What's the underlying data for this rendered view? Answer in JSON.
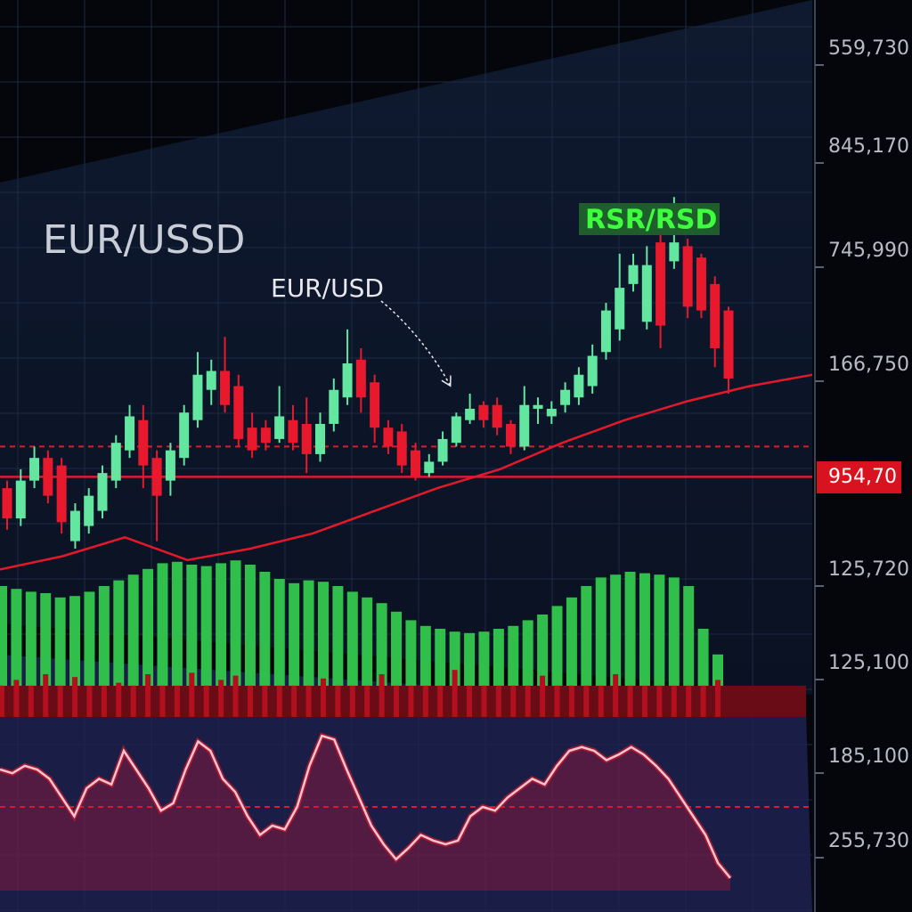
{
  "title": "EUR/USSD",
  "pair_label": "EUR/USD",
  "indicator_label": "RSR/RSD",
  "axis_labels": [
    "559,730",
    "845,170",
    "745,990",
    "166,750",
    "125,720",
    "125,100",
    "185,100",
    "255,730"
  ],
  "current_price_label": "954,70",
  "chart_data": [
    {
      "type": "candlestick",
      "ylim": [
        -10,
        100
      ],
      "up_color": "#62e6a0",
      "down_color": "#e8192c",
      "open": [
        18,
        10,
        20,
        26,
        24,
        4,
        8,
        12,
        20,
        28,
        36,
        26,
        20,
        26,
        36,
        44,
        49,
        45,
        34,
        34,
        31,
        36,
        35,
        27,
        35,
        42,
        52,
        46,
        34,
        33,
        28,
        22,
        25,
        30,
        36,
        40,
        40,
        35,
        29,
        39,
        37,
        40,
        42,
        45,
        54,
        60,
        72,
        62,
        83,
        78,
        82,
        79,
        72,
        65
      ],
      "high": [
        20,
        23,
        29,
        28,
        26,
        14,
        18,
        24,
        32,
        40,
        40,
        28,
        30,
        40,
        54,
        52,
        58,
        48,
        38,
        36,
        45,
        40,
        42,
        38,
        47,
        60,
        55,
        48,
        36,
        35,
        30,
        27,
        33,
        38,
        43,
        41,
        42,
        36,
        45,
        42,
        41,
        46,
        50,
        56,
        67,
        80,
        80,
        82,
        85,
        95,
        84,
        80,
        74,
        66
      ],
      "low": [
        7,
        8,
        18,
        14,
        6,
        2,
        6,
        10,
        18,
        26,
        18,
        4,
        16,
        24,
        34,
        40,
        38,
        29,
        26,
        28,
        30,
        28,
        22,
        25,
        33,
        40,
        38,
        30,
        27,
        22,
        20,
        21,
        24,
        29,
        35,
        34,
        32,
        27,
        28,
        35,
        35,
        38,
        40,
        43,
        52,
        57,
        70,
        60,
        55,
        76,
        63,
        63,
        50,
        43
      ],
      "close": [
        10,
        20,
        26,
        16,
        9,
        12,
        16,
        22,
        30,
        37,
        24,
        16,
        28,
        38,
        48,
        49,
        40,
        31,
        28,
        30,
        37,
        30,
        27,
        35,
        44,
        51,
        42,
        34,
        29,
        24,
        21,
        25,
        31,
        37,
        39,
        36,
        34,
        29,
        40,
        40,
        39,
        44,
        48,
        53,
        65,
        71,
        77,
        77,
        61,
        83,
        66,
        65,
        55,
        47
      ],
      "moving_average": [
        -3.5,
        0,
        5,
        -1,
        2,
        6,
        12,
        18,
        23,
        30,
        36,
        41,
        45,
        48
      ],
      "line_color": "#e3192b",
      "levels": [
        21,
        29
      ]
    },
    {
      "type": "bar",
      "ylim": [
        0,
        100
      ],
      "series": [
        {
          "color": "#2fbf4a",
          "values": [
            70,
            68,
            66,
            65,
            62,
            63,
            66,
            70,
            74,
            78,
            82,
            86,
            87,
            85,
            84,
            86,
            88,
            85,
            80,
            75,
            72,
            74,
            73,
            70,
            66,
            62,
            58,
            52,
            46,
            42,
            40,
            38,
            37,
            38,
            40,
            42,
            46,
            50,
            56,
            62,
            70,
            76,
            78,
            80,
            79,
            78,
            76,
            70,
            40,
            22
          ]
        },
        {
          "color": "#b3101f",
          "values": [
            22,
            26,
            22,
            30,
            22,
            28,
            22,
            22,
            24,
            22,
            30,
            22,
            22,
            31,
            22,
            26,
            29,
            22,
            22,
            22,
            22,
            22,
            27,
            22,
            22,
            22,
            30,
            22,
            22,
            22,
            22,
            33,
            22,
            22,
            22,
            22,
            22,
            29,
            22,
            22,
            22,
            22,
            30,
            22,
            22,
            22,
            22,
            22,
            22,
            26
          ]
        }
      ]
    },
    {
      "type": "line",
      "ylim": [
        0,
        100
      ],
      "color": "#f3c4cf",
      "values": [
        60,
        58,
        62,
        60,
        55,
        45,
        35,
        50,
        55,
        52,
        70,
        60,
        50,
        38,
        42,
        60,
        75,
        70,
        55,
        48,
        35,
        25,
        30,
        28,
        40,
        62,
        78,
        76,
        60,
        45,
        30,
        20,
        12,
        18,
        25,
        22,
        20,
        22,
        35,
        40,
        38,
        45,
        50,
        55,
        52,
        62,
        70,
        72,
        70,
        65,
        68,
        72,
        68,
        62,
        55,
        45,
        35,
        25,
        10,
        2
      ],
      "levels": [
        40
      ]
    }
  ]
}
